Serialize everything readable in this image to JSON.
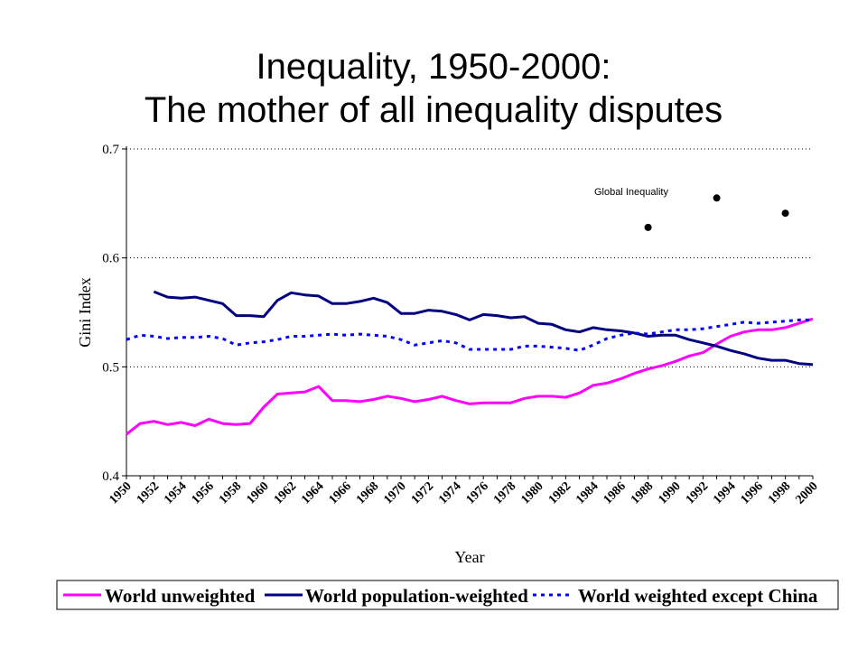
{
  "title": {
    "line1": "Inequality, 1950-2000:",
    "line2": "The mother of all inequality disputes"
  },
  "chart_data": {
    "type": "line",
    "xlabel": "Year",
    "ylabel": "Gini Index",
    "ylim": [
      0.4,
      0.7
    ],
    "yticks": [
      "0.4",
      "0.5",
      "0.6",
      "0.7"
    ],
    "xlim": [
      1950,
      2000
    ],
    "xticks": [
      "1950",
      "1952",
      "1954",
      "1956",
      "1958",
      "1960",
      "1962",
      "1964",
      "1966",
      "1968",
      "1970",
      "1972",
      "1974",
      "1976",
      "1978",
      "1980",
      "1982",
      "1984",
      "1986",
      "1988",
      "1990",
      "1992",
      "1994",
      "1996",
      "1998",
      "2000"
    ],
    "grid": "horizontal dotted",
    "legend_position": "bottom",
    "annotation": "Global Inequality",
    "series": [
      {
        "name": "World unweighted",
        "color": "#ff00ff",
        "style": "solid",
        "x": [
          1950,
          1951,
          1952,
          1953,
          1954,
          1955,
          1956,
          1957,
          1958,
          1959,
          1960,
          1961,
          1962,
          1963,
          1964,
          1965,
          1966,
          1967,
          1968,
          1969,
          1970,
          1971,
          1972,
          1973,
          1974,
          1975,
          1976,
          1977,
          1978,
          1979,
          1980,
          1981,
          1982,
          1983,
          1984,
          1985,
          1986,
          1987,
          1988,
          1989,
          1990,
          1991,
          1992,
          1993,
          1994,
          1995,
          1996,
          1997,
          1998,
          1999,
          2000
        ],
        "values": [
          0.438,
          0.448,
          0.45,
          0.447,
          0.449,
          0.446,
          0.452,
          0.448,
          0.447,
          0.448,
          0.463,
          0.475,
          0.476,
          0.477,
          0.482,
          0.469,
          0.469,
          0.468,
          0.47,
          0.473,
          0.471,
          0.468,
          0.47,
          0.473,
          0.469,
          0.466,
          0.467,
          0.467,
          0.467,
          0.471,
          0.473,
          0.473,
          0.472,
          0.476,
          0.483,
          0.485,
          0.489,
          0.494,
          0.498,
          0.501,
          0.505,
          0.51,
          0.513,
          0.521,
          0.528,
          0.532,
          0.534,
          0.534,
          0.536,
          0.54,
          0.544
        ]
      },
      {
        "name": "World population-weighted",
        "color": "#000080",
        "style": "solid",
        "x": [
          1952,
          1953,
          1954,
          1955,
          1956,
          1957,
          1958,
          1959,
          1960,
          1961,
          1962,
          1963,
          1964,
          1965,
          1966,
          1967,
          1968,
          1969,
          1970,
          1971,
          1972,
          1973,
          1974,
          1975,
          1976,
          1977,
          1978,
          1979,
          1980,
          1981,
          1982,
          1983,
          1984,
          1985,
          1986,
          1987,
          1988,
          1989,
          1990,
          1991,
          1992,
          1993,
          1994,
          1995,
          1996,
          1997,
          1998,
          1999,
          2000
        ],
        "values": [
          0.569,
          0.564,
          0.563,
          0.564,
          0.561,
          0.558,
          0.547,
          0.547,
          0.546,
          0.561,
          0.568,
          0.566,
          0.565,
          0.558,
          0.558,
          0.56,
          0.563,
          0.559,
          0.549,
          0.549,
          0.552,
          0.551,
          0.548,
          0.543,
          0.548,
          0.547,
          0.545,
          0.546,
          0.54,
          0.539,
          0.534,
          0.532,
          0.536,
          0.534,
          0.533,
          0.531,
          0.528,
          0.529,
          0.529,
          0.525,
          0.522,
          0.519,
          0.515,
          0.512,
          0.508,
          0.506,
          0.506,
          0.503,
          0.502
        ]
      },
      {
        "name": "World weighted except China",
        "color": "#0000ff",
        "style": "dotted",
        "x": [
          1950,
          1951,
          1952,
          1953,
          1954,
          1955,
          1956,
          1957,
          1958,
          1959,
          1960,
          1961,
          1962,
          1963,
          1964,
          1965,
          1966,
          1967,
          1968,
          1969,
          1970,
          1971,
          1972,
          1973,
          1974,
          1975,
          1976,
          1977,
          1978,
          1979,
          1980,
          1981,
          1982,
          1983,
          1984,
          1985,
          1986,
          1987,
          1988,
          1989,
          1990,
          1991,
          1992,
          1993,
          1994,
          1995,
          1996,
          1997,
          1998,
          1999,
          2000
        ],
        "values": [
          0.525,
          0.529,
          0.528,
          0.526,
          0.527,
          0.527,
          0.528,
          0.526,
          0.52,
          0.522,
          0.523,
          0.525,
          0.528,
          0.528,
          0.529,
          0.53,
          0.529,
          0.53,
          0.529,
          0.528,
          0.525,
          0.52,
          0.522,
          0.524,
          0.522,
          0.516,
          0.516,
          0.516,
          0.516,
          0.519,
          0.519,
          0.518,
          0.517,
          0.515,
          0.52,
          0.526,
          0.529,
          0.531,
          0.53,
          0.532,
          0.534,
          0.534,
          0.535,
          0.537,
          0.539,
          0.541,
          0.54,
          0.541,
          0.542,
          0.543,
          0.543
        ]
      },
      {
        "name": "Global Inequality",
        "color": "#000000",
        "style": "markers",
        "x": [
          1988,
          1993,
          1998
        ],
        "values": [
          0.628,
          0.655,
          0.641
        ]
      }
    ]
  }
}
